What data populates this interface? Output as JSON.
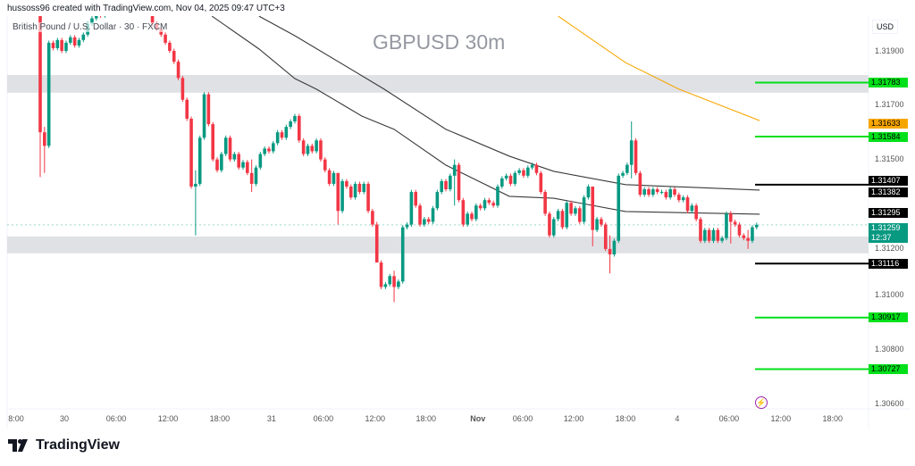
{
  "header": {
    "credit": "hussoss96 created with TradingView.com, Nov 04, 2025 09:47 UTC+3",
    "symbol_line": "British Pound / U.S. Dollar · 30 · FXCM",
    "watermark": "GBPUSD 30m",
    "currency": "USD"
  },
  "colors": {
    "up": "#089981",
    "down": "#f23645",
    "ma": "#3a3a3a",
    "orange": "#f7a600",
    "green_level": "#00e01a",
    "black_level": "#000000",
    "zone": "#e0e1e5"
  },
  "logo": {
    "text": "TradingView"
  },
  "icons": {
    "alert": "lightning-icon"
  },
  "chart_data": {
    "type": "candlestick",
    "title": "GBPUSD 30m",
    "ylim": [
      1.3057,
      1.3204
    ],
    "yticks": [
      "1.31900",
      "1.31700",
      "1.31500",
      "1.31200",
      "1.31000",
      "1.30800",
      "1.30600"
    ],
    "yticks_values": [
      1.319,
      1.317,
      1.315,
      1.312,
      1.31,
      1.308,
      1.306
    ],
    "xticks": [
      {
        "label": "8:00",
        "bar": -6.2
      },
      {
        "label": "30",
        "bar": 5.6
      },
      {
        "label": "06:00",
        "bar": 17.6
      },
      {
        "label": "12:00",
        "bar": 29.6
      },
      {
        "label": "18:00",
        "bar": 41.6
      },
      {
        "label": "31",
        "bar": 53.6
      },
      {
        "label": "06:00",
        "bar": 65.6
      },
      {
        "label": "12:00",
        "bar": 77.6
      },
      {
        "label": "18:00",
        "bar": 89.4
      },
      {
        "label": "Nov",
        "bar": 101.4
      },
      {
        "label": "06:00",
        "bar": 111.8
      },
      {
        "label": "12:00",
        "bar": 123.6
      },
      {
        "label": "18:00",
        "bar": 135.6
      },
      {
        "label": "4",
        "bar": 147.6
      },
      {
        "label": "06:00",
        "bar": 159.6
      },
      {
        "label": "12:00",
        "bar": 171.6
      },
      {
        "label": "18:00",
        "bar": 183.6
      }
    ],
    "first_open": 1.3205,
    "closes": [
      1.316,
      1.3155,
      1.3193,
      1.3191,
      1.3194,
      1.319,
      1.3193,
      1.3195,
      1.3192,
      1.3194,
      1.3196,
      1.32,
      1.3202,
      1.3205,
      1.3203,
      1.3206,
      1.3204,
      1.3207,
      1.3205,
      1.3208,
      1.3206,
      1.3209,
      1.3207,
      1.3205,
      1.3207,
      1.3206,
      1.32,
      1.3198,
      1.3196,
      1.3193,
      1.319,
      1.3186,
      1.318,
      1.3172,
      1.3165,
      1.314,
      1.3141,
      1.3158,
      1.3174,
      1.3163,
      1.315,
      1.3146,
      1.3152,
      1.3158,
      1.315,
      1.3152,
      1.3147,
      1.3149,
      1.3145,
      1.3141,
      1.3147,
      1.3152,
      1.3154,
      1.3153,
      1.3156,
      1.316,
      1.3158,
      1.3162,
      1.3164,
      1.3166,
      1.3157,
      1.3152,
      1.3155,
      1.3153,
      1.3157,
      1.315,
      1.3146,
      1.3141,
      1.3145,
      1.3131,
      1.3142,
      1.314,
      1.3136,
      1.3141,
      1.3138,
      1.3141,
      1.3131,
      1.3126,
      1.3112,
      1.3103,
      1.3104,
      1.3107,
      1.3103,
      1.3105,
      1.3125,
      1.3126,
      1.3138,
      1.3133,
      1.3126,
      1.3128,
      1.3127,
      1.3132,
      1.3138,
      1.3142,
      1.3139,
      1.3144,
      1.3148,
      1.3135,
      1.3126,
      1.313,
      1.3128,
      1.3133,
      1.3132,
      1.3135,
      1.3134,
      1.3133,
      1.314,
      1.3143,
      1.3144,
      1.3141,
      1.3145,
      1.3146,
      1.3144,
      1.3147,
      1.3148,
      1.3145,
      1.3138,
      1.313,
      1.3122,
      1.3128,
      1.3131,
      1.3125,
      1.3134,
      1.313,
      1.3132,
      1.3127,
      1.3136,
      1.314,
      1.3124,
      1.3128,
      1.3126,
      1.3117,
      1.3115,
      1.312,
      1.3144,
      1.3145,
      1.3148,
      1.3157,
      1.3145,
      1.3137,
      1.3139,
      1.3137,
      1.3139,
      1.3138,
      1.3138,
      1.3136,
      1.3139,
      1.3137,
      1.3135,
      1.3136,
      1.3131,
      1.3133,
      1.3128,
      1.312,
      1.3124,
      1.312,
      1.3124,
      1.312,
      1.3121,
      1.313,
      1.3127,
      1.3126,
      1.3122,
      1.3121,
      1.312,
      1.3125,
      1.31259
    ],
    "wicks": {
      "0": [
        1.3206,
        1.31435
      ],
      "1": [
        1.3162,
        1.3145
      ],
      "36": [
        1.3146,
        1.3122
      ],
      "49": [
        1.315,
        1.3138
      ],
      "69": [
        1.3145,
        1.3126
      ],
      "78": [
        1.3127,
        1.3113
      ],
      "82": [
        1.3109,
        1.30974
      ],
      "96": [
        1.315,
        1.3133
      ],
      "128": [
        1.314,
        1.3118
      ],
      "132": [
        1.3122,
        1.3108
      ],
      "137": [
        1.3164,
        1.3143
      ],
      "160": [
        1.3131,
        1.3119
      ],
      "164": [
        1.3124,
        1.3117
      ]
    },
    "moving_averages": [
      {
        "name": "ma-fast",
        "color": "#3a3a3a",
        "points": [
          [
            39.8,
            1.32028
          ],
          [
            50.7,
            1.31907
          ],
          [
            59,
            1.31798
          ],
          [
            64,
            1.31759
          ],
          [
            74.5,
            1.3166
          ],
          [
            82,
            1.31611
          ],
          [
            94,
            1.31479
          ],
          [
            108.7,
            1.31364
          ],
          [
            119,
            1.31357
          ],
          [
            135.6,
            1.31308
          ],
          [
            166.7,
            1.31298
          ]
        ]
      },
      {
        "name": "ma-slow",
        "color": "#3a3a3a",
        "points": [
          [
            50.7,
            1.32028
          ],
          [
            59,
            1.31956
          ],
          [
            79.7,
            1.31759
          ],
          [
            94,
            1.31611
          ],
          [
            108.7,
            1.31512
          ],
          [
            119,
            1.31456
          ],
          [
            135.6,
            1.31407
          ],
          [
            166.7,
            1.31387
          ]
        ]
      },
      {
        "name": "ma-orange",
        "color": "#f7a600",
        "points": [
          [
            120,
            1.32028
          ],
          [
            135.6,
            1.31857
          ],
          [
            148,
            1.31759
          ],
          [
            166.7,
            1.31643
          ]
        ]
      }
    ],
    "zones": [
      [
        1.31811,
        1.31746
      ],
      [
        1.31216,
        1.31154
      ]
    ],
    "levels": [
      {
        "price": 1.31783,
        "color": "#00e01a"
      },
      {
        "price": 1.31584,
        "color": "#00e01a"
      },
      {
        "price": 1.31407,
        "color": "#000000"
      },
      {
        "price": 1.31116,
        "color": "#000000"
      },
      {
        "price": 1.30917,
        "color": "#00e01a"
      },
      {
        "price": 1.30727,
        "color": "#00e01a"
      }
    ],
    "current_price": 1.31259,
    "price_labels": [
      {
        "text": "1.31783",
        "price": 1.31783,
        "bg": "#00e01a",
        "fg": "#000"
      },
      {
        "text": "1.31633",
        "price": 1.31633,
        "bg": "#f7a600",
        "fg": "#000"
      },
      {
        "text": "1.31584",
        "price": 1.31584,
        "bg": "#00e01a",
        "fg": "#000"
      },
      {
        "text": "1.31407",
        "price": 1.3142,
        "bg": "#000",
        "fg": "#fff"
      },
      {
        "text": "1.31382",
        "price": 1.31378,
        "bg": "#000",
        "fg": "#fff"
      },
      {
        "text": "1.31295",
        "price": 1.31302,
        "bg": "#000",
        "fg": "#fff"
      },
      {
        "text": "1.31259",
        "sub": "12:37",
        "price": 1.31245,
        "bg": "#089981",
        "fg": "#fff"
      },
      {
        "text": "1.31116",
        "price": 1.31116,
        "bg": "#000",
        "fg": "#fff"
      },
      {
        "text": "1.30917",
        "price": 1.30917,
        "bg": "#00e01a",
        "fg": "#000"
      },
      {
        "text": "1.30727",
        "price": 1.30727,
        "bg": "#00e01a",
        "fg": "#000"
      }
    ]
  }
}
